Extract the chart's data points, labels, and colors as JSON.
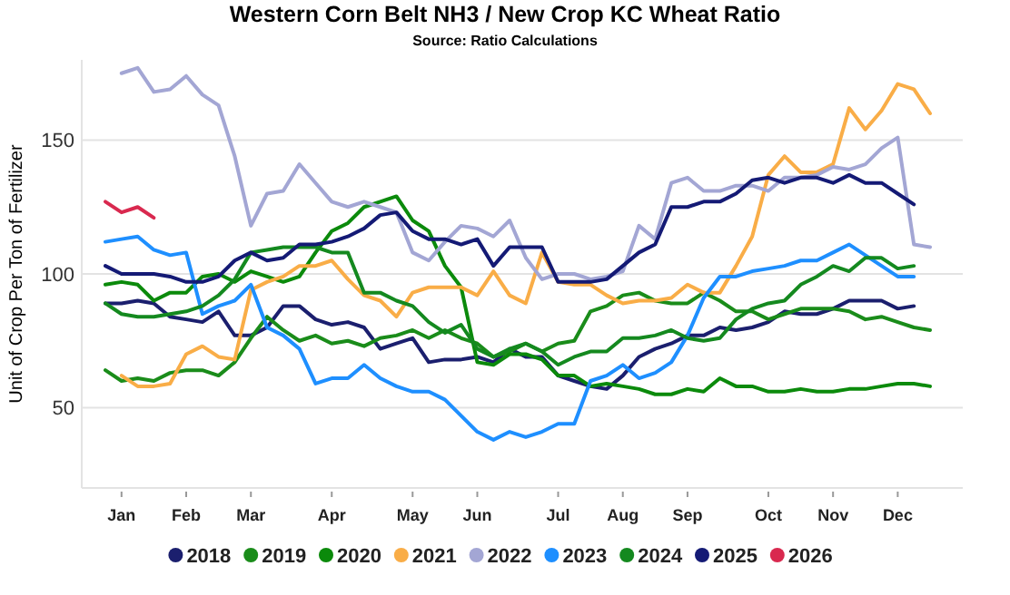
{
  "chart_data": {
    "type": "line",
    "title": "Western Corn Belt NH3 / New Crop KC Wheat Ratio",
    "subtitle": "Source: Ratio Calculations",
    "ylabel": "Unit of Crop Per Ton of Fertilizer",
    "categories": [
      null,
      "Jan",
      null,
      null,
      null,
      "Feb",
      null,
      null,
      null,
      "Mar",
      null,
      null,
      null,
      null,
      "Apr",
      null,
      null,
      null,
      null,
      "May",
      null,
      null,
      null,
      "Jun",
      null,
      null,
      null,
      null,
      "Jul",
      null,
      null,
      null,
      "Aug",
      null,
      null,
      null,
      "Sep",
      null,
      null,
      null,
      null,
      "Oct",
      null,
      null,
      null,
      "Nov",
      null,
      null,
      null,
      "Dec",
      null,
      null
    ],
    "ylim": [
      20,
      180
    ],
    "yticks": [
      50,
      100,
      150
    ],
    "grid": "y",
    "legend": "bottom",
    "series": [
      {
        "name": "2018",
        "color": "#1b1f6e",
        "values": [
          89,
          89,
          90,
          89,
          84,
          83,
          82,
          86,
          77,
          77,
          80,
          88,
          88,
          83,
          81,
          82,
          80,
          72,
          74,
          76,
          67,
          68,
          68,
          69,
          67,
          72,
          69,
          69,
          62,
          60,
          58,
          57,
          62,
          69,
          72,
          74,
          77,
          77,
          80,
          79,
          80,
          82,
          86,
          85,
          85,
          87,
          90,
          90,
          90,
          87,
          88,
          null
        ]
      },
      {
        "name": "2019",
        "color": "#1a8c1a",
        "values": [
          64,
          60,
          61,
          60,
          63,
          64,
          64,
          62,
          67,
          76,
          84,
          79,
          75,
          77,
          74,
          75,
          73,
          76,
          77,
          79,
          76,
          79,
          76,
          74,
          69,
          71,
          74,
          71,
          74,
          75,
          86,
          88,
          92,
          93,
          90,
          89,
          89,
          93,
          90,
          86,
          86,
          83,
          85,
          87,
          87,
          87,
          86,
          83,
          84,
          82,
          80,
          79
        ]
      },
      {
        "name": "2020",
        "color": "#0b8a0b",
        "values": [
          96,
          97,
          96,
          90,
          93,
          93,
          99,
          100,
          97,
          101,
          99,
          97,
          99,
          108,
          116,
          119,
          125,
          127,
          129,
          120,
          116,
          103,
          95,
          67,
          66,
          70,
          70,
          68,
          62,
          62,
          58,
          59,
          58,
          57,
          55,
          55,
          57,
          56,
          61,
          58,
          58,
          56,
          56,
          57,
          56,
          56,
          57,
          57,
          58,
          59,
          59,
          58
        ]
      },
      {
        "name": "2021",
        "color": "#f9ad47",
        "values": [
          null,
          62,
          58,
          58,
          59,
          70,
          73,
          69,
          68,
          94,
          97,
          99,
          103,
          103,
          105,
          98,
          92,
          90,
          84,
          93,
          95,
          95,
          95,
          92,
          101,
          92,
          89,
          108,
          97,
          96,
          96,
          92,
          89,
          90,
          90,
          91,
          96,
          93,
          93,
          103,
          114,
          137,
          144,
          138,
          138,
          141,
          162,
          154,
          161,
          171,
          169,
          160
        ]
      },
      {
        "name": "2022",
        "color": "#a3a6d4",
        "values": [
          null,
          175,
          177,
          168,
          169,
          174,
          167,
          163,
          144,
          118,
          130,
          131,
          141,
          134,
          127,
          125,
          127,
          125,
          123,
          108,
          105,
          112,
          118,
          117,
          114,
          120,
          106,
          98,
          100,
          100,
          98,
          99,
          101,
          118,
          113,
          134,
          136,
          131,
          131,
          133,
          133,
          131,
          136,
          136,
          137,
          140,
          139,
          141,
          147,
          151,
          111,
          110
        ]
      },
      {
        "name": "2023",
        "color": "#1e8fff",
        "values": [
          112,
          113,
          114,
          109,
          107,
          108,
          85,
          88,
          90,
          96,
          80,
          77,
          72,
          59,
          61,
          61,
          66,
          61,
          58,
          56,
          56,
          53,
          47,
          41,
          38,
          41,
          39,
          41,
          44,
          44,
          60,
          62,
          66,
          61,
          63,
          67,
          77,
          91,
          99,
          99,
          101,
          102,
          103,
          105,
          105,
          108,
          111,
          107,
          103,
          99,
          99,
          null
        ]
      },
      {
        "name": "2024",
        "color": "#14891f",
        "values": [
          89,
          85,
          84,
          84,
          85,
          86,
          88,
          92,
          98,
          108,
          109,
          110,
          110,
          110,
          108,
          108,
          93,
          93,
          90,
          88,
          82,
          78,
          81,
          72,
          69,
          72,
          74,
          71,
          66,
          69,
          71,
          71,
          76,
          76,
          77,
          79,
          76,
          75,
          76,
          83,
          87,
          89,
          90,
          96,
          99,
          103,
          101,
          106,
          106,
          102,
          103,
          null
        ]
      },
      {
        "name": "2025",
        "color": "#141a75",
        "values": [
          103,
          100,
          100,
          100,
          99,
          97,
          97,
          99,
          105,
          108,
          105,
          106,
          111,
          111,
          112,
          114,
          117,
          122,
          123,
          116,
          113,
          113,
          111,
          113,
          103,
          110,
          110,
          110,
          97,
          97,
          97,
          98,
          103,
          108,
          111,
          125,
          125,
          127,
          127,
          130,
          135,
          136,
          134,
          136,
          136,
          134,
          137,
          134,
          134,
          130,
          126,
          null
        ]
      },
      {
        "name": "2026",
        "color": "#d9294f",
        "values": [
          127,
          123,
          125,
          121,
          null,
          null,
          null,
          null,
          null,
          null,
          null,
          null,
          null,
          null,
          null,
          null,
          null,
          null,
          null,
          null,
          null,
          null,
          null,
          null,
          null,
          null,
          null,
          null,
          null,
          null,
          null,
          null,
          null,
          null,
          null,
          null,
          null,
          null,
          null,
          null,
          null,
          null,
          null,
          null,
          null,
          null,
          null,
          null,
          null,
          null,
          null,
          null
        ]
      }
    ]
  }
}
